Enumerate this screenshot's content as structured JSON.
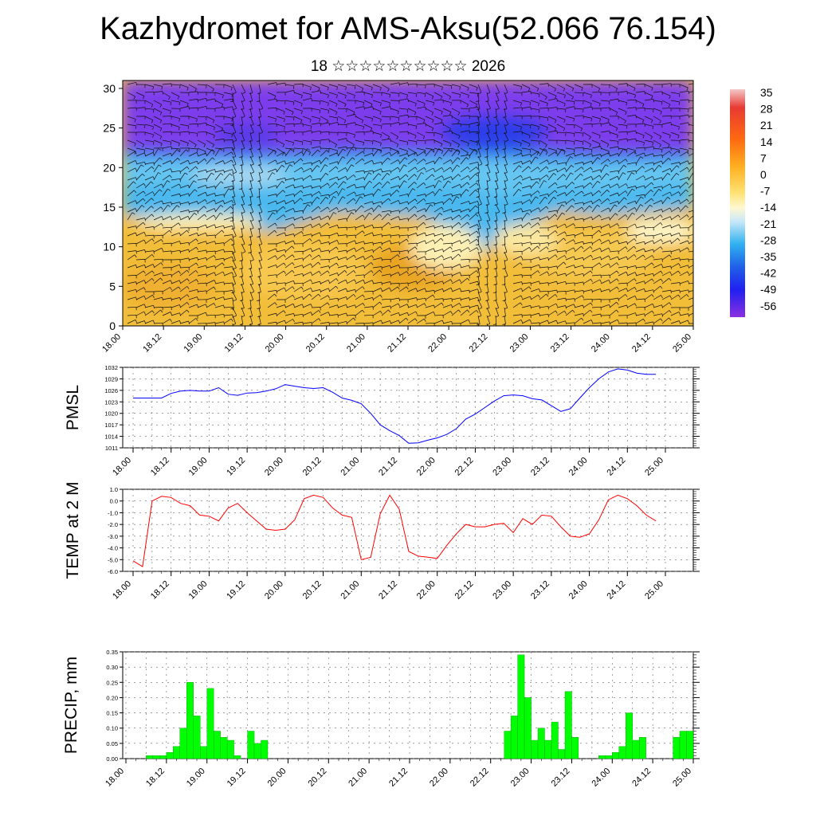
{
  "title": "Kazhydromet for AMS-Aksu(52.066 76.154)",
  "subtitle": "18 ☆☆☆☆☆☆☆☆☆☆ 2026",
  "chart_data": [
    {
      "type": "heatmap",
      "yticks": [
        "0",
        "5",
        "10",
        "15",
        "20",
        "25",
        "30"
      ],
      "ylim": [
        0,
        31
      ],
      "xticks": [
        "18.00",
        "18.12",
        "19.00",
        "19.12",
        "20.00",
        "20.12",
        "21.00",
        "21.12",
        "22.00",
        "22.12",
        "23.00",
        "23.12",
        "24.00",
        "24.12",
        "25.00"
      ],
      "colorbar_labels": [
        "35",
        "28",
        "21",
        "14",
        "7",
        "0",
        "-7",
        "-14",
        "-21",
        "-28",
        "-35",
        "-42",
        "-49",
        "-56"
      ],
      "colors": {
        "warm": "#f2b830",
        "cold": "#8a3cf0",
        "mid": "#3cb0e8"
      }
    },
    {
      "type": "line",
      "ylabel": "PMSL",
      "ylim": [
        1011,
        1032
      ],
      "yticks": [
        "1011",
        "1014",
        "1017",
        "1020",
        "1023",
        "1026",
        "1029",
        "1032"
      ],
      "xticks": [
        "18.00",
        "18.12",
        "19.00",
        "19.12",
        "20.00",
        "20.12",
        "21.00",
        "21.12",
        "22.00",
        "22.12",
        "23.00",
        "23.12",
        "24.00",
        "24.12",
        "25.00"
      ],
      "color": "#0000ff",
      "x": [
        0,
        3,
        6,
        9,
        12,
        15,
        18,
        21,
        24,
        27,
        30,
        33,
        36,
        39,
        42,
        45,
        48,
        51,
        54,
        57,
        60,
        63,
        66,
        69,
        72,
        75,
        78,
        81,
        84,
        87,
        90,
        93,
        96,
        99,
        102,
        105,
        108,
        111,
        114,
        117,
        120,
        123,
        126,
        129,
        132,
        135,
        138,
        141,
        144,
        147,
        150,
        153,
        156,
        159,
        162,
        165
      ],
      "values": [
        1024,
        1024,
        1024,
        1024,
        1025.2,
        1025.8,
        1026,
        1025.8,
        1025.8,
        1026.7,
        1025,
        1024.7,
        1025.3,
        1025.4,
        1025.8,
        1026.4,
        1027.5,
        1027.1,
        1026.7,
        1026.5,
        1026.7,
        1025.5,
        1024,
        1023.4,
        1022.5,
        1020,
        1017,
        1015.5,
        1014.2,
        1012.2,
        1012.3,
        1013,
        1013.6,
        1014.5,
        1016,
        1018.5,
        1019.8,
        1021.5,
        1023.2,
        1024.6,
        1024.8,
        1024.6,
        1023.8,
        1023.5,
        1022,
        1020.5,
        1021.2,
        1024,
        1026.7,
        1029,
        1030.8,
        1031.6,
        1031.3,
        1030.5,
        1030.2,
        1030.2
      ]
    },
    {
      "type": "line",
      "ylabel": "TEMP at 2 M",
      "ylim": [
        -6,
        1
      ],
      "yticks": [
        "-6.0",
        "-5.0",
        "-4.0",
        "-3.0",
        "-2.0",
        "-1.0",
        "0.0",
        "1.0"
      ],
      "xticks": [
        "18.00",
        "18.12",
        "19.00",
        "19.12",
        "20.00",
        "20.12",
        "21.00",
        "21.12",
        "22.00",
        "22.12",
        "23.00",
        "23.12",
        "24.00",
        "24.12",
        "25.00"
      ],
      "color": "#ff0000",
      "x": [
        0,
        3,
        6,
        9,
        12,
        15,
        18,
        21,
        24,
        27,
        30,
        33,
        36,
        39,
        42,
        45,
        48,
        51,
        54,
        57,
        60,
        63,
        66,
        69,
        72,
        75,
        78,
        81,
        84,
        87,
        90,
        93,
        96,
        99,
        102,
        105,
        108,
        111,
        114,
        117,
        120,
        123,
        126,
        129,
        132,
        135,
        138,
        141,
        144,
        147,
        150,
        153,
        156,
        159,
        162,
        165
      ],
      "values": [
        -5.1,
        -5.6,
        0,
        0.4,
        0.3,
        -0.2,
        -0.4,
        -1.2,
        -1.3,
        -1.7,
        -0.6,
        -0.2,
        -1,
        -1.7,
        -2.4,
        -2.5,
        -2.4,
        -1.6,
        0.2,
        0.5,
        0.3,
        -0.6,
        -1.2,
        -1.4,
        -5,
        -4.8,
        -1.1,
        0.5,
        -0.7,
        -4.3,
        -4.7,
        -4.8,
        -4.9,
        -3.8,
        -2.8,
        -2,
        -2.2,
        -2.2,
        -2,
        -1.9,
        -2.7,
        -1.5,
        -2,
        -1.2,
        -1.3,
        -2.2,
        -3,
        -3.1,
        -2.8,
        -1.6,
        0.1,
        0.5,
        0.2,
        -0.4,
        -1.2,
        -1.7
      ]
    },
    {
      "type": "bar",
      "ylabel": "PRECIP, mm",
      "ylim": [
        0,
        0.35
      ],
      "yticks": [
        "0.00",
        "0.05",
        "0.10",
        "0.15",
        "0.20",
        "0.25",
        "0.30",
        "0.35"
      ],
      "xticks": [
        "18.00",
        "18.12",
        "19.00",
        "19.12",
        "20.00",
        "20.12",
        "21.00",
        "21.12",
        "22.00",
        "22.12",
        "23.00",
        "23.12",
        "24.00",
        "24.12",
        "25.00"
      ],
      "color": "#00ff00",
      "values": [
        0,
        0,
        0,
        0.01,
        0.01,
        0.01,
        0.02,
        0.04,
        0.1,
        0.25,
        0.14,
        0.04,
        0.23,
        0.09,
        0.07,
        0.06,
        0.01,
        0,
        0.09,
        0.05,
        0.06,
        0,
        0,
        0,
        0,
        0,
        0,
        0,
        0,
        0,
        0,
        0,
        0,
        0,
        0,
        0,
        0,
        0,
        0,
        0,
        0,
        0,
        0,
        0,
        0,
        0,
        0,
        0,
        0,
        0,
        0,
        0,
        0,
        0,
        0,
        0,
        0.09,
        0.14,
        0.34,
        0.2,
        0.06,
        0.1,
        0.06,
        0.12,
        0.03,
        0.22,
        0.07,
        0,
        0,
        0,
        0.01,
        0.01,
        0.02,
        0.04,
        0.15,
        0.06,
        0.07,
        0,
        0,
        0,
        0,
        0.07,
        0.09,
        0.09
      ]
    }
  ]
}
